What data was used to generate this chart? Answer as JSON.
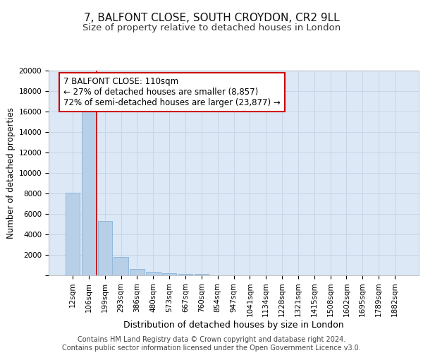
{
  "title1": "7, BALFONT CLOSE, SOUTH CROYDON, CR2 9LL",
  "title2": "Size of property relative to detached houses in London",
  "xlabel": "Distribution of detached houses by size in London",
  "ylabel": "Number of detached properties",
  "categories": [
    "12sqm",
    "106sqm",
    "199sqm",
    "293sqm",
    "386sqm",
    "480sqm",
    "573sqm",
    "667sqm",
    "760sqm",
    "854sqm",
    "947sqm",
    "1041sqm",
    "1134sqm",
    "1228sqm",
    "1321sqm",
    "1415sqm",
    "1508sqm",
    "1602sqm",
    "1695sqm",
    "1789sqm",
    "1882sqm"
  ],
  "bar_values": [
    8100,
    16600,
    5300,
    1800,
    650,
    320,
    180,
    130,
    110,
    0,
    0,
    0,
    0,
    0,
    0,
    0,
    0,
    0,
    0,
    0,
    0
  ],
  "bar_color": "#b8cfe8",
  "bar_edge_color": "#7aaad0",
  "grid_color": "#c8d4e8",
  "bg_color": "#dce8f5",
  "vline_color": "#cc0000",
  "annotation_box_color": "#ffffff",
  "annotation_border_color": "#cc0000",
  "ylim": [
    0,
    20000
  ],
  "yticks": [
    0,
    2000,
    4000,
    6000,
    8000,
    10000,
    12000,
    14000,
    16000,
    18000,
    20000
  ],
  "footer1": "Contains HM Land Registry data © Crown copyright and database right 2024.",
  "footer2": "Contains public sector information licensed under the Open Government Licence v3.0.",
  "title1_fontsize": 11,
  "title2_fontsize": 9.5,
  "xlabel_fontsize": 9,
  "ylabel_fontsize": 8.5,
  "tick_fontsize": 7.5,
  "annotation_fontsize": 8.5,
  "footer_fontsize": 7
}
